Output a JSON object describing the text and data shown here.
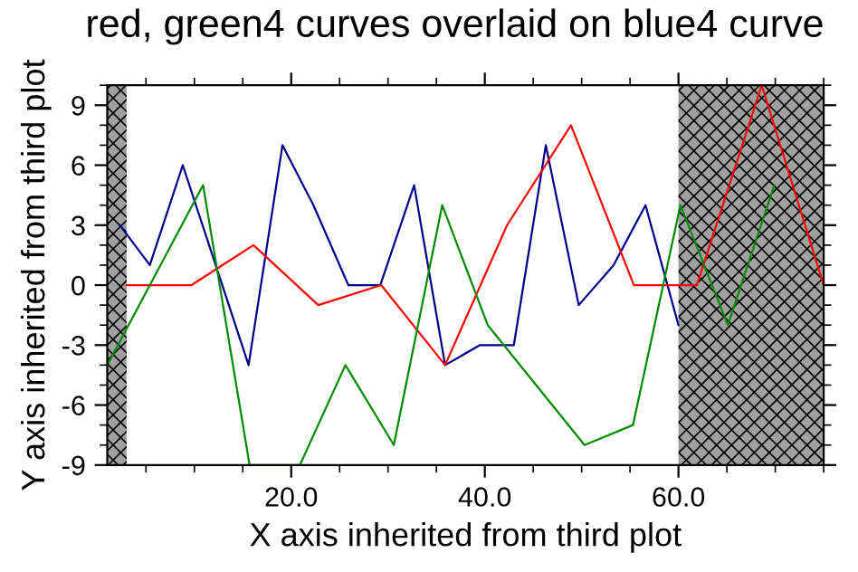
{
  "chart_data": {
    "type": "line",
    "title": "red, green4 curves overlaid on blue4 curve",
    "xlabel": "X axis inherited from third plot",
    "ylabel": "Y axis inherited from third plot",
    "series": [
      {
        "color": "#00008b",
        "x": [
          2.3,
          5.4,
          8.8,
          15.6,
          19.1,
          22.3,
          25.9,
          29.2,
          32.7,
          35.9,
          39.5,
          43,
          46.3,
          49.7,
          53.3,
          56.6,
          60
        ],
        "values": [
          3,
          1,
          6,
          -4,
          7,
          4,
          0,
          0,
          5,
          -4,
          -3,
          -3,
          7,
          -1,
          1,
          4,
          -2
        ]
      },
      {
        "color": "#ff0000",
        "x": [
          3,
          9.7,
          16.1,
          22.8,
          29.3,
          35.9,
          42.3,
          48.9,
          55.4,
          61.9,
          68.6,
          75
        ],
        "values": [
          0,
          0,
          2,
          -1,
          0,
          -4,
          3,
          8,
          0,
          0,
          10,
          0
        ]
      },
      {
        "color": "#008b00",
        "x": [
          1,
          10.9,
          15.7,
          20.9,
          25.6,
          30.6,
          35.6,
          40.3,
          50.3,
          55.3,
          60.2,
          65.1,
          69.9
        ],
        "values": [
          -4,
          5,
          -9,
          -9,
          -4,
          -8,
          4,
          -2,
          -8,
          -7,
          4,
          -2,
          5
        ]
      }
    ],
    "bands": [
      {
        "axis": "x",
        "from": 1,
        "to": 3,
        "color": "#a0a0a0"
      },
      {
        "axis": "x",
        "from": 60,
        "to": 75,
        "color": "#a0a0a0"
      }
    ],
    "xlim": [
      1,
      75
    ],
    "ylim": [
      -9,
      10
    ],
    "xticks": [
      {
        "value": 20,
        "label": "20.0"
      },
      {
        "value": 40,
        "label": "40.0"
      },
      {
        "value": 60,
        "label": "60.0"
      }
    ],
    "yticks": [
      -9,
      -6,
      -3,
      0,
      3,
      6,
      9
    ],
    "grid": false,
    "legend": false,
    "marker": "none",
    "line_style": "solid"
  }
}
